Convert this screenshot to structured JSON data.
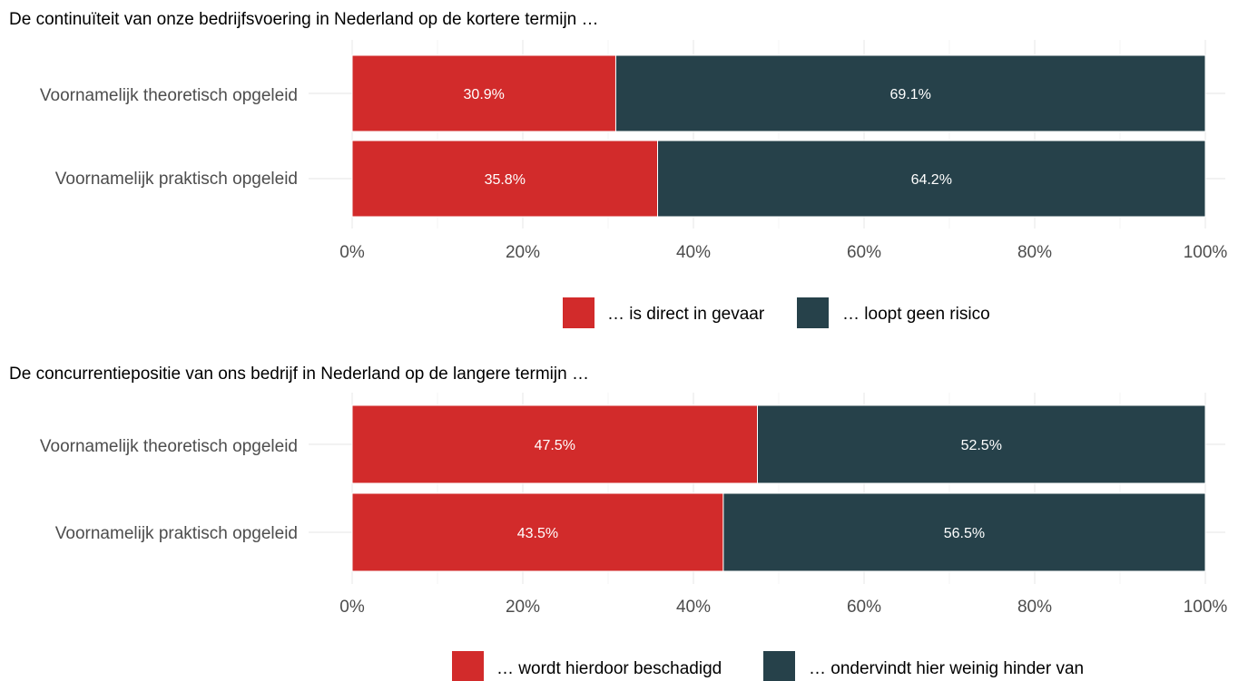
{
  "colors": {
    "series1": "#d22b2b",
    "series2": "#26414a",
    "grid": "#ebebeb",
    "text_dark": "#000000",
    "text_muted": "#4d4d4d"
  },
  "chart_data": [
    {
      "type": "bar",
      "orientation": "horizontal",
      "stacked": true,
      "title": "De continuïteit van onze bedrijfsvoering in Nederland op de kortere termijn …",
      "categories": [
        "Voornamelijk theoretisch opgeleid",
        "Voornamelijk praktisch opgeleid"
      ],
      "series": [
        {
          "name": "… is direct in gevaar",
          "values": [
            30.9,
            35.8
          ],
          "labels": [
            "30.9%",
            "35.8%"
          ]
        },
        {
          "name": "… loopt geen risico",
          "values": [
            69.1,
            64.2
          ],
          "labels": [
            "69.1%",
            "64.2%"
          ]
        }
      ],
      "xlim": [
        0,
        100
      ],
      "xticks": [
        0,
        20,
        40,
        60,
        80,
        100
      ],
      "xtick_labels": [
        "0%",
        "20%",
        "40%",
        "60%",
        "80%",
        "100%"
      ],
      "xlabel": "",
      "ylabel": "",
      "grid": true,
      "legend_position": "bottom"
    },
    {
      "type": "bar",
      "orientation": "horizontal",
      "stacked": true,
      "title": "De concurrentiepositie van ons bedrijf in Nederland op de langere termijn …",
      "categories": [
        "Voornamelijk theoretisch opgeleid",
        "Voornamelijk praktisch opgeleid"
      ],
      "series": [
        {
          "name": "… wordt hierdoor beschadigd",
          "values": [
            47.5,
            43.5
          ],
          "labels": [
            "47.5%",
            "43.5%"
          ]
        },
        {
          "name": "… ondervindt hier weinig hinder van",
          "values": [
            52.5,
            56.5
          ],
          "labels": [
            "52.5%",
            "56.5%"
          ]
        }
      ],
      "xlim": [
        0,
        100
      ],
      "xticks": [
        0,
        20,
        40,
        60,
        80,
        100
      ],
      "xtick_labels": [
        "0%",
        "20%",
        "40%",
        "60%",
        "80%",
        "100%"
      ],
      "xlabel": "",
      "ylabel": "",
      "grid": true,
      "legend_position": "bottom"
    }
  ]
}
